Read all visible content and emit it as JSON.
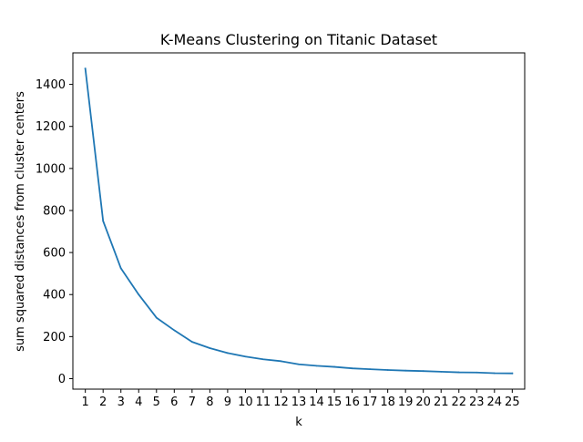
{
  "chart_data": {
    "type": "line",
    "title": "K-Means Clustering on Titanic Dataset",
    "xlabel": "k",
    "ylabel": "sum squared distances from cluster centers",
    "x": [
      1,
      2,
      3,
      4,
      5,
      6,
      7,
      8,
      9,
      10,
      11,
      12,
      13,
      14,
      15,
      16,
      17,
      18,
      19,
      20,
      21,
      22,
      23,
      24,
      25
    ],
    "series": [
      {
        "values": [
          1475,
          750,
          525,
          400,
          290,
          230,
          175,
          145,
          122,
          105,
          92,
          83,
          68,
          61,
          56,
          49,
          45,
          41,
          38,
          36,
          33,
          30,
          29,
          26,
          25
        ],
        "color": "#1f77b4"
      }
    ],
    "xlim": [
      0.3,
      25.7
    ],
    "ylim": [
      -50,
      1550
    ],
    "xticks": [
      1,
      2,
      3,
      4,
      5,
      6,
      7,
      8,
      9,
      10,
      11,
      12,
      13,
      14,
      15,
      16,
      17,
      18,
      19,
      20,
      21,
      22,
      23,
      24,
      25
    ],
    "yticks": [
      0,
      200,
      400,
      600,
      800,
      1000,
      1200,
      1400
    ],
    "grid": false,
    "legend": "none"
  }
}
